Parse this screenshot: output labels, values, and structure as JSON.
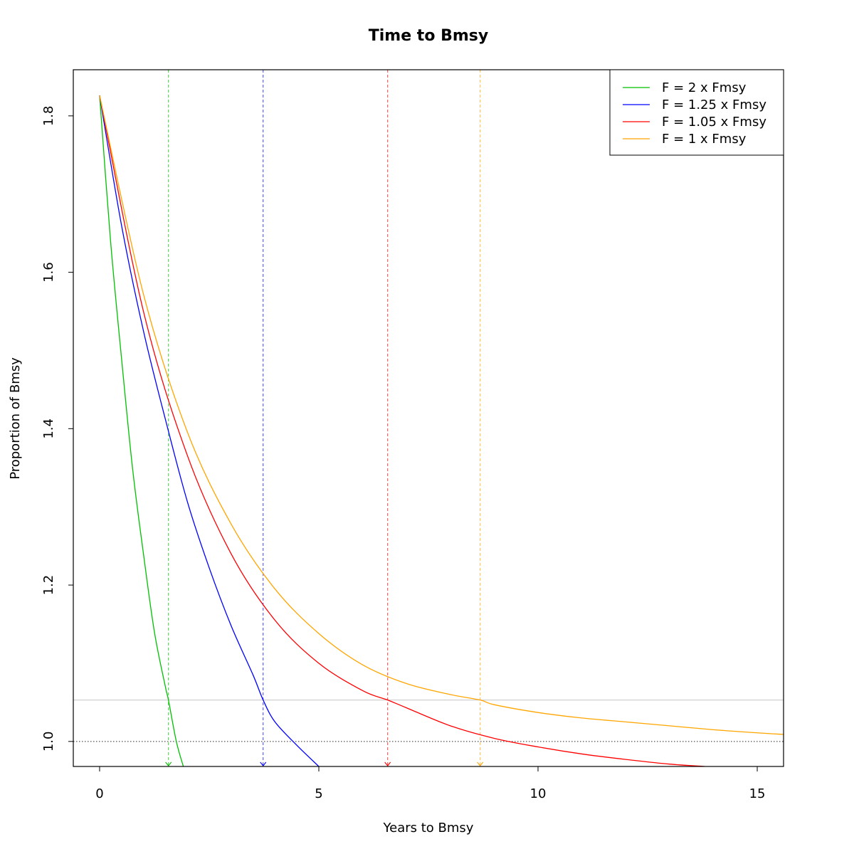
{
  "chart_data": {
    "type": "line",
    "title": "Time to Bmsy",
    "xlabel": "Years to Bmsy",
    "ylabel": "Proportion of Bmsy",
    "xlim": [
      -0.6,
      15.6
    ],
    "ylim": [
      0.968,
      1.859
    ],
    "x_ticks": [
      0,
      5,
      10,
      15
    ],
    "x_tick_labels": [
      "0",
      "5",
      "10",
      "15"
    ],
    "y_ticks": [
      1.0,
      1.2,
      1.4,
      1.6,
      1.8
    ],
    "y_tick_labels": [
      "1.0",
      "1.2",
      "1.4",
      "1.6",
      "1.8"
    ],
    "grid": false,
    "legend_position": "top-right",
    "reference_lines": [
      {
        "axis": "y",
        "value": 1.0,
        "style": "dotted",
        "color": "#555555"
      },
      {
        "axis": "y",
        "value": 1.053,
        "style": "solid",
        "color": "#d0d0d0"
      }
    ],
    "series": [
      {
        "name": "F = 2 x Fmsy",
        "color": "#00c000",
        "time_to_target": 1.57,
        "x": [
          0,
          0.25,
          0.5,
          0.75,
          1.0,
          1.25,
          1.5,
          1.57,
          1.75,
          1.91
        ],
        "y": [
          1.826,
          1.64,
          1.49,
          1.35,
          1.24,
          1.14,
          1.07,
          1.053,
          1.0,
          0.968
        ]
      },
      {
        "name": "F = 1.25 x Fmsy",
        "color": "#0000ff",
        "time_to_target": 3.73,
        "x": [
          0,
          0.5,
          1.0,
          1.5,
          2.0,
          2.5,
          3.0,
          3.5,
          3.73,
          4.0,
          4.5,
          5.0
        ],
        "y": [
          1.826,
          1.66,
          1.525,
          1.412,
          1.307,
          1.222,
          1.148,
          1.085,
          1.053,
          1.025,
          0.995,
          0.968
        ]
      },
      {
        "name": "F = 1.05 x Fmsy",
        "color": "#ff0000",
        "time_to_target": 6.57,
        "x": [
          0,
          1,
          2,
          3,
          4,
          5,
          6,
          6.57,
          7,
          8,
          9,
          10,
          11,
          12,
          13,
          13.8
        ],
        "y": [
          1.826,
          1.55,
          1.366,
          1.24,
          1.155,
          1.1,
          1.065,
          1.053,
          1.043,
          1.02,
          1.004,
          0.993,
          0.984,
          0.977,
          0.971,
          0.968
        ]
      },
      {
        "name": "F = 1 x Fmsy",
        "color": "#ffa500",
        "time_to_target": 8.68,
        "x": [
          0,
          1,
          2,
          3,
          4,
          5,
          6,
          7,
          8,
          8.68,
          9,
          10,
          11,
          12,
          13,
          14,
          15,
          15.6
        ],
        "y": [
          1.826,
          1.572,
          1.396,
          1.278,
          1.195,
          1.138,
          1.098,
          1.074,
          1.06,
          1.053,
          1.047,
          1.037,
          1.03,
          1.025,
          1.02,
          1.015,
          1.011,
          1.009
        ]
      }
    ]
  }
}
